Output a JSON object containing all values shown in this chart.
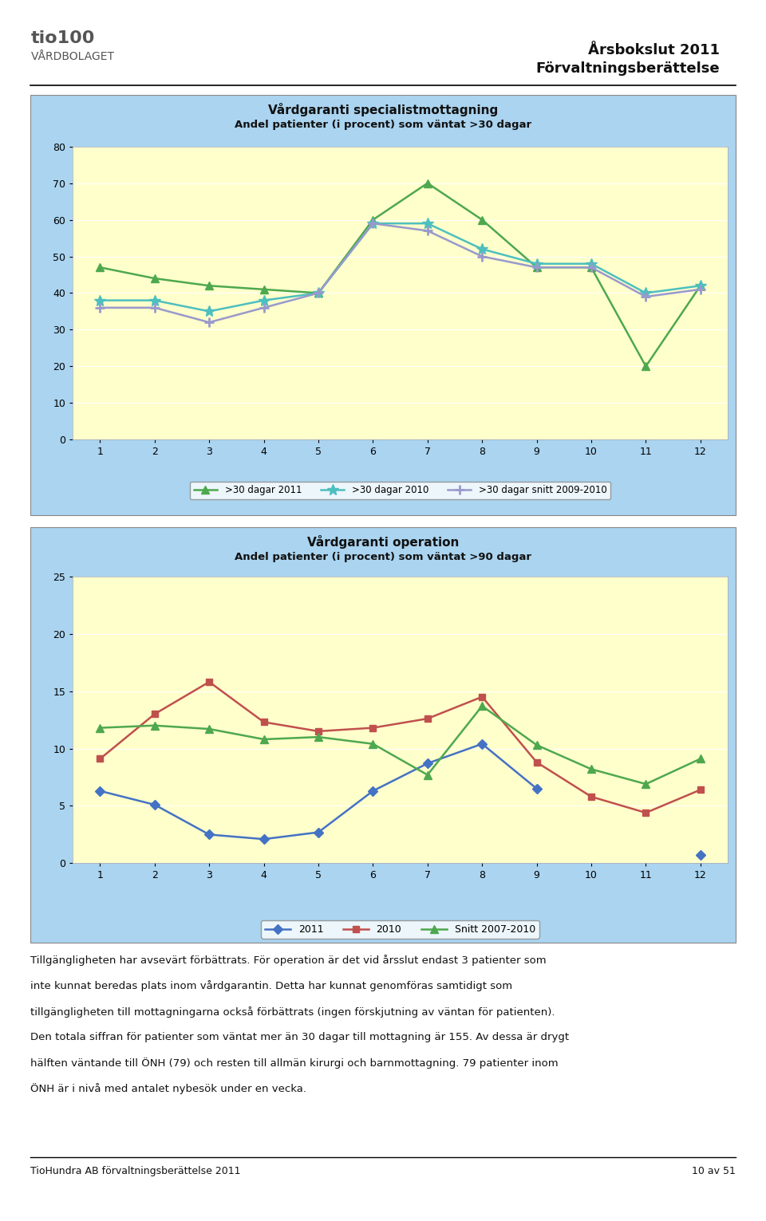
{
  "chart1": {
    "title1": "Vårdgaranti specialistmottagning",
    "title2": "Andel patienter (i procent) som väntat >30 dagar",
    "x": [
      1,
      2,
      3,
      4,
      5,
      6,
      7,
      8,
      9,
      10,
      11,
      12
    ],
    "y2011": [
      47,
      44,
      42,
      41,
      40,
      60,
      70,
      60,
      47,
      47,
      20,
      42
    ],
    "y2010": [
      38,
      38,
      35,
      38,
      40,
      59,
      59,
      52,
      48,
      48,
      40,
      42
    ],
    "ysnitt": [
      36,
      36,
      32,
      36,
      40,
      59,
      57,
      50,
      47,
      47,
      39,
      41
    ],
    "ylim": [
      0,
      80
    ],
    "yticks": [
      0,
      10,
      20,
      30,
      40,
      50,
      60,
      70,
      80
    ],
    "legend2011": ">30 dagar 2011",
    "legend2010": ">30 dagar 2010",
    "legendsnitt": ">30 dagar snitt 2009-2010",
    "color2011": "#4EA84E",
    "color2010": "#4DBFBF",
    "colorsnitt": "#9999CC",
    "bg_outer": "#AAD4F0",
    "bg_inner": "#FFFFCC"
  },
  "chart2": {
    "title1": "Vårdgaranti operation",
    "title2": "Andel patienter (i procent) som väntat >90 dagar",
    "x": [
      1,
      2,
      3,
      4,
      5,
      6,
      7,
      8,
      9,
      10,
      11,
      12
    ],
    "y2011": [
      6.3,
      5.1,
      2.5,
      2.1,
      2.7,
      6.3,
      8.7,
      10.4,
      6.5,
      null,
      null,
      0.7
    ],
    "y2010": [
      9.1,
      13.0,
      15.8,
      12.3,
      11.5,
      11.8,
      12.6,
      14.5,
      8.8,
      5.8,
      4.4,
      6.4
    ],
    "ysnitt": [
      11.8,
      12.0,
      11.7,
      10.8,
      11.0,
      10.4,
      7.7,
      13.7,
      10.3,
      8.2,
      6.9,
      9.1
    ],
    "ylim": [
      0,
      25
    ],
    "yticks": [
      0,
      5,
      10,
      15,
      20,
      25
    ],
    "legend2011": "2011",
    "legend2010": "2010",
    "legendsnitt": "Snitt 2007-2010",
    "color2011": "#4472C4",
    "color2010": "#C0504D",
    "colorsnitt": "#4EA84E",
    "bg_outer": "#AAD4F0",
    "bg_inner": "#FFFFCC"
  },
  "text_blocks": [
    "Tillgängligheten har avsevärt förbättrats. För operation är det vid årsslut endast 3 patienter som",
    "inte kunnat beredas plats inom vårdgarantin. Detta har kunnat genomföras samtidigt som",
    "tillgängligheten till mottagningarna också förbättrats (ingen förskjutning av väntan för patienten).",
    "Den totala siffran för patienter som väntat mer än 30 dagar till mottagning är 155. Av dessa är drygt",
    "hälften väntande till ÖNH (79) och resten till allmän kirurgi och barnmottagning. 79 patienter inom",
    "ÖNH är i nivå med antalet nybesök under en vecka."
  ],
  "header_right1": "Årsbokslut 2011",
  "header_right2": "Förvaltningsberättelse",
  "footer_left": "TioHundra AB förvaltningsberättelse 2011",
  "footer_right": "10 av 51",
  "page_bg": "#FFFFFF"
}
